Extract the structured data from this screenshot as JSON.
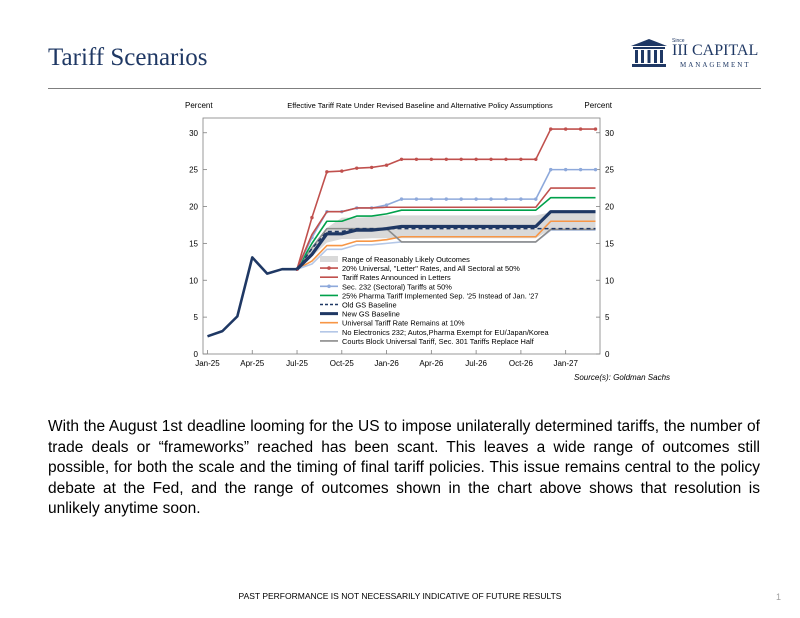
{
  "page": {
    "title": "Tariff Scenarios",
    "logo_small": "Since",
    "logo_name": "III CAPITAL",
    "logo_sub": "MANAGEMENT",
    "source": "Source(s): Goldman Sachs",
    "body": "With the August 1st deadline looming for the US to impose unilaterally determined tariffs, the number of trade deals or “frameworks” reached has been scant. This leaves a wide range of outcomes still possible, for both the scale and the timing of final tariff policies. This issue remains central to the policy debate at the Fed, and the range of outcomes shown in the chart above shows that resolution is unlikely anytime soon.",
    "footer": "PAST PERFORMANCE IS NOT NECESSARILY INDICATIVE OF FUTURE RESULTS",
    "page_number": "1",
    "colors": {
      "title": "#1f3864",
      "rule": "#7f7f7f"
    }
  },
  "chart_data": {
    "type": "line",
    "title": "Effective Tariff Rate Under Revised Baseline and Alternative Policy Assumptions",
    "ylabel_left": "Percent",
    "ylabel_right": "Percent",
    "ylim": [
      0,
      32
    ],
    "yticks": [
      0,
      5,
      10,
      15,
      20,
      25,
      30
    ],
    "x_tick_labels": [
      "Jan-25",
      "Apr-25",
      "Jul-25",
      "Oct-25",
      "Jan-26",
      "Apr-26",
      "Jul-26",
      "Oct-26",
      "Jan-27"
    ],
    "x_tick_months": [
      0,
      3,
      6,
      9,
      12,
      15,
      18,
      21,
      24
    ],
    "xlim": [
      -0.3,
      26.3
    ],
    "legend_position": "bottom-right",
    "history": {
      "x": [
        0,
        1,
        2,
        3,
        4,
        5,
        6
      ],
      "y": [
        2.4,
        3.1,
        5.1,
        13.1,
        10.9,
        11.5,
        11.5
      ],
      "color": "#1f3864"
    },
    "band": {
      "name": "Range of Reasonably Likely Outcomes",
      "color": "#d9d9d9",
      "x": [
        6,
        7,
        8,
        9,
        10,
        11,
        12,
        13,
        14,
        15,
        16,
        17,
        18,
        19,
        20,
        21,
        22,
        23,
        24,
        25,
        26
      ],
      "lower": [
        11.5,
        13.2,
        15.1,
        15.6,
        15.6,
        15.7,
        15.7,
        15.7,
        15.7,
        15.7,
        15.7,
        15.7,
        15.7,
        15.7,
        15.7,
        15.7,
        15.7,
        16.9,
        16.9,
        16.9,
        16.9
      ],
      "upper": [
        11.5,
        14.6,
        17.1,
        18.5,
        18.5,
        18.6,
        18.8,
        18.8,
        18.8,
        18.8,
        18.8,
        18.8,
        18.8,
        18.8,
        18.8,
        18.8,
        18.8,
        19.2,
        19.2,
        19.2,
        19.2
      ]
    },
    "series": [
      {
        "name": "20% Universal, \"Letter\" Rates, and All Sectoral at 50%",
        "color": "#c0504d",
        "width": 1.6,
        "markers": true,
        "x": [
          6,
          7,
          8,
          9,
          10,
          11,
          12,
          13,
          14,
          15,
          16,
          17,
          18,
          19,
          20,
          21,
          22,
          23,
          24,
          25,
          26
        ],
        "y": [
          11.5,
          18.5,
          24.7,
          24.8,
          25.2,
          25.3,
          25.6,
          26.4,
          26.4,
          26.4,
          26.4,
          26.4,
          26.4,
          26.4,
          26.4,
          26.4,
          26.4,
          30.5,
          30.5,
          30.5,
          30.5
        ]
      },
      {
        "name": "Tariff Rates Announced in Letters",
        "color": "#c0504d",
        "width": 1.6,
        "markers": false,
        "x": [
          6,
          7,
          8,
          9,
          10,
          11,
          12,
          13,
          14,
          15,
          16,
          17,
          18,
          19,
          20,
          21,
          22,
          23,
          24,
          25,
          26
        ],
        "y": [
          11.5,
          16.2,
          19.3,
          19.3,
          19.8,
          19.8,
          19.9,
          19.9,
          19.9,
          19.9,
          19.9,
          19.9,
          19.9,
          19.9,
          19.9,
          19.9,
          19.9,
          22.5,
          22.5,
          22.5,
          22.5
        ]
      },
      {
        "name": "Sec. 232 (Sectoral) Tariffs at 50%",
        "color": "#8ea9db",
        "width": 1.6,
        "markers": true,
        "x": [
          6,
          7,
          8,
          9,
          10,
          11,
          12,
          13,
          14,
          15,
          16,
          17,
          18,
          19,
          20,
          21,
          22,
          23,
          24,
          25,
          26
        ],
        "y": [
          11.5,
          15.8,
          19.3,
          19.3,
          19.8,
          19.8,
          20.2,
          21.0,
          21.0,
          21.0,
          21.0,
          21.0,
          21.0,
          21.0,
          21.0,
          21.0,
          21.0,
          25.0,
          25.0,
          25.0,
          25.0
        ]
      },
      {
        "name": "25% Pharma Tariff Implemented Sep. '25 Instead of Jan. '27",
        "color": "#00a14b",
        "width": 1.6,
        "markers": false,
        "x": [
          6,
          7,
          8,
          9,
          10,
          11,
          12,
          13,
          14,
          15,
          16,
          17,
          18,
          19,
          20,
          21,
          22,
          23,
          24,
          25,
          26
        ],
        "y": [
          11.5,
          15.0,
          18.0,
          18.0,
          18.7,
          18.7,
          19.0,
          19.5,
          19.5,
          19.5,
          19.5,
          19.5,
          19.5,
          19.5,
          19.5,
          19.5,
          19.5,
          21.2,
          21.2,
          21.2,
          21.2
        ]
      },
      {
        "name": "Old GS Baseline",
        "color": "#1f3864",
        "width": 1.6,
        "dash": "4 3",
        "markers": false,
        "x": [
          6,
          7,
          8,
          9,
          10,
          11,
          12,
          13,
          14,
          15,
          16,
          17,
          18,
          19,
          20,
          21,
          22,
          23,
          24,
          25,
          26
        ],
        "y": [
          11.5,
          14.3,
          16.6,
          16.6,
          17.0,
          17.0,
          17.0,
          17.0,
          17.0,
          17.0,
          17.0,
          17.0,
          17.0,
          17.0,
          17.0,
          17.0,
          17.0,
          17.0,
          17.0,
          17.0,
          17.0
        ]
      },
      {
        "name": "New GS Baseline",
        "color": "#1f3864",
        "width": 3.2,
        "markers": false,
        "x": [
          6,
          7,
          8,
          9,
          10,
          11,
          12,
          13,
          14,
          15,
          16,
          17,
          18,
          19,
          20,
          21,
          22,
          23,
          24,
          25,
          26
        ],
        "y": [
          11.5,
          13.5,
          16.3,
          16.3,
          16.8,
          16.8,
          17.0,
          17.3,
          17.3,
          17.3,
          17.3,
          17.3,
          17.3,
          17.3,
          17.3,
          17.3,
          17.3,
          19.3,
          19.3,
          19.3,
          19.3
        ]
      },
      {
        "name": "Universal Tariff Rate Remains at 10%",
        "color": "#f79646",
        "width": 1.6,
        "markers": false,
        "x": [
          6,
          7,
          8,
          9,
          10,
          11,
          12,
          13,
          14,
          15,
          16,
          17,
          18,
          19,
          20,
          21,
          22,
          23,
          24,
          25,
          26
        ],
        "y": [
          11.5,
          12.6,
          14.7,
          14.7,
          15.3,
          15.3,
          15.5,
          15.9,
          15.9,
          15.9,
          15.9,
          15.9,
          15.9,
          15.9,
          15.9,
          15.9,
          15.9,
          18.0,
          18.0,
          18.0,
          18.0
        ]
      },
      {
        "name": "No Electronics 232; Autos,Pharma Exempt for EU/Japan/Korea",
        "color": "#b4c7e7",
        "width": 1.6,
        "markers": false,
        "x": [
          6,
          7,
          8,
          9,
          10,
          11,
          12,
          13,
          14,
          15,
          16,
          17,
          18,
          19,
          20,
          21,
          22,
          23,
          24,
          25,
          26
        ],
        "y": [
          11.5,
          12.2,
          14.2,
          14.2,
          14.8,
          14.8,
          15.0,
          15.2,
          15.2,
          15.2,
          15.2,
          15.2,
          15.2,
          15.2,
          15.2,
          15.2,
          15.2,
          16.8,
          16.8,
          16.8,
          16.8
        ]
      },
      {
        "name": "Courts Block Universal Tariff, Sec. 301 Tariffs Replace Half",
        "color": "#8c8c8c",
        "width": 1.6,
        "markers": false,
        "x": [
          6,
          7,
          8,
          9,
          10,
          11,
          12,
          13,
          14,
          15,
          16,
          17,
          18,
          19,
          20,
          21,
          22,
          23,
          24,
          25,
          26
        ],
        "y": [
          11.5,
          14.4,
          17.0,
          17.0,
          17.0,
          17.0,
          17.0,
          15.2,
          15.2,
          15.2,
          15.2,
          15.2,
          15.2,
          15.2,
          15.2,
          15.2,
          15.2,
          16.9,
          16.9,
          16.9,
          16.9
        ]
      }
    ]
  }
}
